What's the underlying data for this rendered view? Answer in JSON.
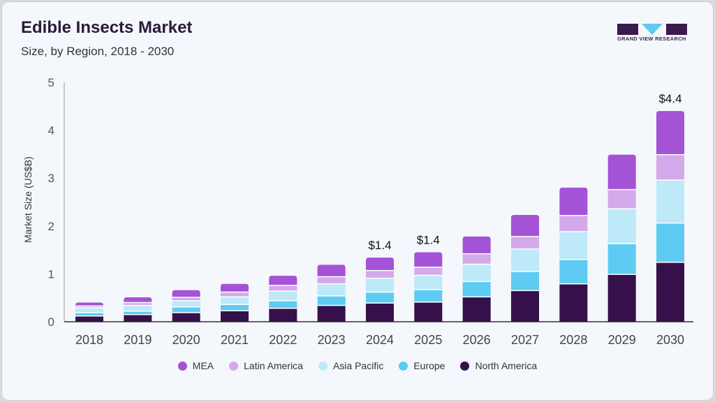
{
  "header": {
    "title": "Edible Insects Market",
    "subtitle": "Size, by Region, 2018 - 2030",
    "logo_text": "GRAND VIEW RESEARCH"
  },
  "chart_data": {
    "type": "bar",
    "stacked": true,
    "title": "Edible Insects Market",
    "subtitle": "Size, by Region, 2018 - 2030",
    "xlabel": "",
    "ylabel": "Market Size (US$B)",
    "ylim": [
      0,
      5
    ],
    "yticks": [
      0,
      1,
      2,
      3,
      4,
      5
    ],
    "grid": false,
    "legend_position": "bottom",
    "categories": [
      "2018",
      "2019",
      "2020",
      "2021",
      "2022",
      "2023",
      "2024",
      "2025",
      "2026",
      "2027",
      "2028",
      "2029",
      "2030"
    ],
    "series": [
      {
        "name": "North America",
        "color": "#35104a",
        "values": [
          0.12,
          0.15,
          0.19,
          0.23,
          0.28,
          0.34,
          0.39,
          0.41,
          0.52,
          0.65,
          0.79,
          0.99,
          1.24
        ]
      },
      {
        "name": "Europe",
        "color": "#5ecbf3",
        "values": [
          0.07,
          0.07,
          0.12,
          0.13,
          0.16,
          0.2,
          0.23,
          0.26,
          0.32,
          0.4,
          0.51,
          0.64,
          0.82
        ]
      },
      {
        "name": "Asia Pacific",
        "color": "#bde9f8",
        "values": [
          0.1,
          0.12,
          0.13,
          0.16,
          0.2,
          0.25,
          0.29,
          0.3,
          0.36,
          0.47,
          0.58,
          0.73,
          0.9
        ]
      },
      {
        "name": "Latin America",
        "color": "#d4a9e9",
        "values": [
          0.04,
          0.06,
          0.07,
          0.1,
          0.12,
          0.15,
          0.16,
          0.17,
          0.22,
          0.26,
          0.34,
          0.4,
          0.53
        ]
      },
      {
        "name": "MEA",
        "color": "#a452d6",
        "values": [
          0.07,
          0.11,
          0.15,
          0.17,
          0.2,
          0.25,
          0.27,
          0.31,
          0.36,
          0.45,
          0.58,
          0.73,
          0.91
        ]
      }
    ],
    "annotations": [
      {
        "category": "2024",
        "text": "$1.4"
      },
      {
        "category": "2025",
        "text": "$1.4"
      },
      {
        "category": "2030",
        "text": "$4.4"
      }
    ],
    "legend_order": [
      "MEA",
      "Latin America",
      "Asia Pacific",
      "Europe",
      "North America"
    ]
  }
}
